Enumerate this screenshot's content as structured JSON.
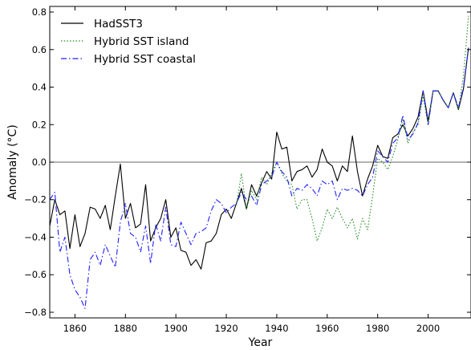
{
  "chart_data": {
    "type": "line",
    "xlabel": "Year",
    "ylabel": "Anomaly (°C)",
    "xlim": [
      1850,
      2017
    ],
    "ylim": [
      -0.83,
      0.83
    ],
    "xticks": [
      1860,
      1880,
      1900,
      1920,
      1940,
      1960,
      1980,
      2000
    ],
    "yticks": [
      -0.8,
      -0.6,
      -0.4,
      -0.2,
      0.0,
      0.2,
      0.4,
      0.6,
      0.8
    ],
    "xtick_labels": [
      "1860",
      "1880",
      "1900",
      "1920",
      "1940",
      "1960",
      "1980",
      "2000"
    ],
    "ytick_labels": [
      "−0.8",
      "−0.6",
      "−0.4",
      "−0.2",
      "0.0",
      "0.2",
      "0.4",
      "0.6",
      "0.8"
    ],
    "zero_line": true,
    "grid": false,
    "legend_position": "top-left",
    "series": [
      {
        "name": "HadSST3",
        "color": "#000000",
        "style": "solid",
        "x": [
          1850,
          1852,
          1854,
          1856,
          1858,
          1860,
          1862,
          1864,
          1866,
          1868,
          1870,
          1872,
          1874,
          1876,
          1878,
          1880,
          1882,
          1884,
          1886,
          1888,
          1890,
          1892,
          1894,
          1896,
          1898,
          1900,
          1902,
          1904,
          1906,
          1908,
          1910,
          1912,
          1914,
          1916,
          1918,
          1920,
          1922,
          1924,
          1926,
          1928,
          1930,
          1932,
          1934,
          1936,
          1938,
          1940,
          1942,
          1944,
          1946,
          1948,
          1950,
          1952,
          1954,
          1956,
          1958,
          1960,
          1962,
          1964,
          1966,
          1968,
          1970,
          1972,
          1974,
          1976,
          1978,
          1980,
          1982,
          1984,
          1986,
          1988,
          1990,
          1992,
          1994,
          1996,
          1998,
          2000,
          2002,
          2004,
          2006,
          2008,
          2010,
          2012,
          2014,
          2016
        ],
        "y": [
          -0.34,
          -0.2,
          -0.28,
          -0.26,
          -0.46,
          -0.28,
          -0.45,
          -0.38,
          -0.24,
          -0.25,
          -0.3,
          -0.23,
          -0.36,
          -0.18,
          -0.01,
          -0.3,
          -0.22,
          -0.35,
          -0.33,
          -0.12,
          -0.42,
          -0.35,
          -0.3,
          -0.2,
          -0.4,
          -0.35,
          -0.47,
          -0.48,
          -0.55,
          -0.52,
          -0.57,
          -0.43,
          -0.42,
          -0.38,
          -0.28,
          -0.25,
          -0.3,
          -0.22,
          -0.14,
          -0.25,
          -0.12,
          -0.18,
          -0.11,
          -0.05,
          -0.09,
          0.16,
          0.07,
          0.08,
          -0.1,
          -0.05,
          -0.04,
          -0.02,
          -0.08,
          -0.04,
          0.07,
          0.0,
          -0.02,
          -0.1,
          -0.02,
          -0.05,
          0.14,
          -0.05,
          -0.18,
          -0.09,
          -0.02,
          0.09,
          0.03,
          0.02,
          0.13,
          0.15,
          0.2,
          0.14,
          0.18,
          0.24,
          0.38,
          0.22,
          0.38,
          0.38,
          0.33,
          0.29,
          0.37,
          0.28,
          0.39,
          0.61
        ]
      },
      {
        "name": "Hybrid SST island",
        "color": "#228b22",
        "style": "dotted",
        "x": [
          1924,
          1926,
          1928,
          1930,
          1932,
          1934,
          1936,
          1938,
          1940,
          1942,
          1944,
          1946,
          1948,
          1950,
          1952,
          1954,
          1956,
          1958,
          1960,
          1962,
          1964,
          1966,
          1968,
          1970,
          1972,
          1974,
          1976,
          1978,
          1980,
          1982,
          1984,
          1986,
          1988,
          1990,
          1992,
          1994,
          1996,
          1998,
          2000,
          2002,
          2004,
          2006,
          2008,
          2010,
          2012,
          2014,
          2016
        ],
        "y": [
          -0.23,
          -0.06,
          -0.25,
          -0.15,
          -0.2,
          -0.08,
          -0.12,
          -0.06,
          0.0,
          -0.06,
          -0.1,
          -0.12,
          -0.25,
          -0.2,
          -0.2,
          -0.3,
          -0.42,
          -0.35,
          -0.25,
          -0.3,
          -0.24,
          -0.3,
          -0.35,
          -0.3,
          -0.41,
          -0.3,
          -0.36,
          -0.18,
          0.02,
          0.0,
          -0.04,
          0.03,
          0.12,
          0.23,
          0.1,
          0.16,
          0.2,
          0.35,
          0.2,
          0.38,
          0.38,
          0.33,
          0.29,
          0.37,
          0.28,
          0.46,
          0.78
        ]
      },
      {
        "name": "Hybrid SST coastal",
        "color": "#1f1fff",
        "style": "dashdot",
        "x": [
          1850,
          1852,
          1854,
          1856,
          1858,
          1860,
          1862,
          1864,
          1866,
          1868,
          1870,
          1872,
          1874,
          1876,
          1878,
          1880,
          1882,
          1884,
          1886,
          1888,
          1890,
          1892,
          1894,
          1896,
          1898,
          1900,
          1902,
          1904,
          1906,
          1908,
          1910,
          1912,
          1914,
          1916,
          1918,
          1920,
          1922,
          1924,
          1926,
          1928,
          1930,
          1932,
          1934,
          1936,
          1938,
          1940,
          1942,
          1944,
          1946,
          1948,
          1950,
          1952,
          1954,
          1956,
          1958,
          1960,
          1962,
          1964,
          1966,
          1968,
          1970,
          1972,
          1974,
          1976,
          1978,
          1980,
          1982,
          1984,
          1986,
          1988,
          1990,
          1992,
          1994,
          1996,
          1998,
          2000,
          2002,
          2004,
          2006,
          2008,
          2010,
          2012,
          2014,
          2016
        ],
        "y": [
          -0.2,
          -0.16,
          -0.48,
          -0.4,
          -0.6,
          -0.68,
          -0.72,
          -0.78,
          -0.52,
          -0.48,
          -0.55,
          -0.44,
          -0.5,
          -0.56,
          -0.32,
          -0.22,
          -0.38,
          -0.4,
          -0.48,
          -0.34,
          -0.54,
          -0.33,
          -0.42,
          -0.24,
          -0.44,
          -0.45,
          -0.32,
          -0.38,
          -0.44,
          -0.38,
          -0.37,
          -0.35,
          -0.26,
          -0.2,
          -0.22,
          -0.27,
          -0.24,
          -0.22,
          -0.16,
          -0.2,
          -0.18,
          -0.23,
          -0.12,
          -0.1,
          -0.08,
          0.0,
          -0.05,
          -0.08,
          -0.18,
          -0.14,
          -0.15,
          -0.12,
          -0.14,
          -0.18,
          -0.1,
          -0.12,
          -0.1,
          -0.2,
          -0.14,
          -0.15,
          -0.14,
          -0.15,
          -0.18,
          -0.12,
          -0.08,
          0.06,
          0.03,
          0.0,
          0.1,
          0.13,
          0.25,
          0.12,
          0.15,
          0.21,
          0.38,
          0.2,
          0.38,
          0.38,
          0.33,
          0.29,
          0.37,
          0.29,
          0.4,
          0.61
        ]
      }
    ]
  }
}
